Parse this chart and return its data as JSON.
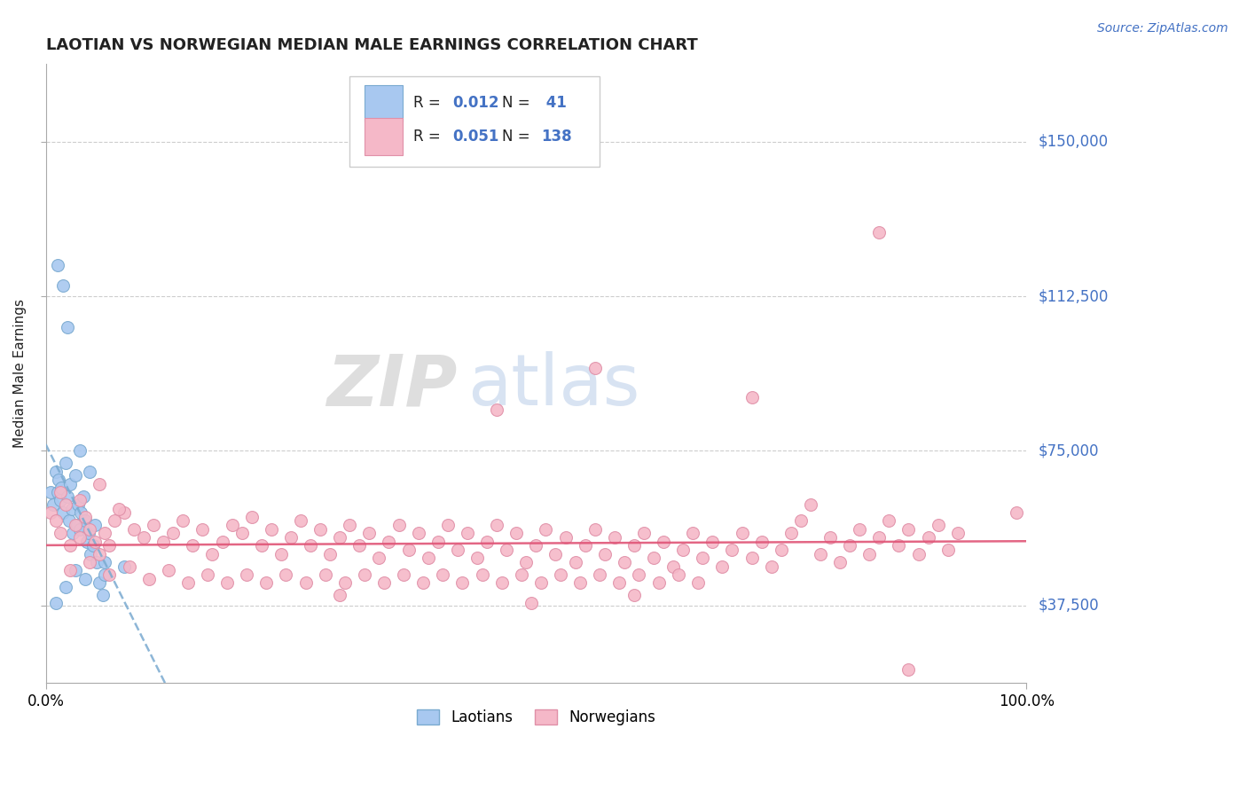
{
  "title": "LAOTIAN VS NORWEGIAN MEDIAN MALE EARNINGS CORRELATION CHART",
  "source": "Source: ZipAtlas.com",
  "ylabel": "Median Male Earnings",
  "xlabel": "",
  "xlim": [
    0.0,
    1.0
  ],
  "ylim": [
    18750,
    168750
  ],
  "yticks": [
    37500,
    75000,
    112500,
    150000
  ],
  "ytick_labels": [
    "$37,500",
    "$75,000",
    "$112,500",
    "$150,000"
  ],
  "bg_color": "#ffffff",
  "grid_color": "#c8c8c8",
  "laotian_color": "#a8c8f0",
  "laotian_edge": "#7aaad0",
  "norwegian_color": "#f5b8c8",
  "norwegian_edge": "#e090a8",
  "laotian_line_color": "#7aaad0",
  "norwegian_line_color": "#e05577",
  "R_laotian": 0.012,
  "N_laotian": 41,
  "R_norwegian": 0.051,
  "N_norwegian": 138,
  "title_color": "#222222",
  "source_color": "#4472c4",
  "ylabel_color": "#222222",
  "tick_color": "#4472c4",
  "legend_text_color": "#222222",
  "legend_value_color": "#4472c4"
}
